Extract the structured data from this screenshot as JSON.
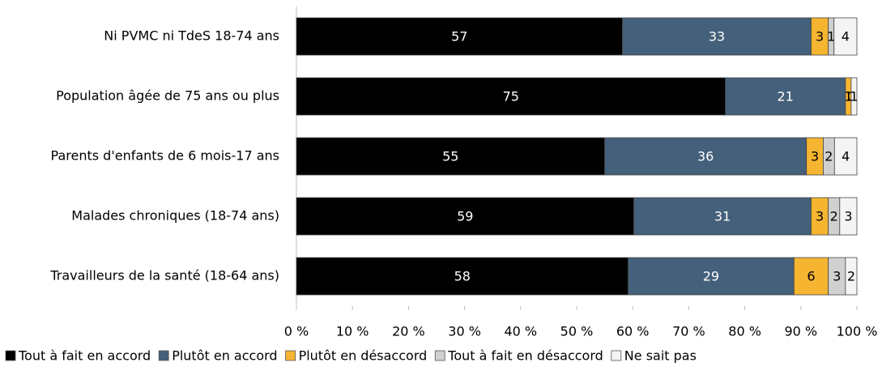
{
  "chart_data": {
    "type": "bar",
    "orientation": "horizontal",
    "stacked": "percent",
    "categories": [
      "Ni PVMC ni TdeS 18-74 ans",
      "Population âgée de 75 ans ou plus",
      "Parents d'enfants de 6 mois-17 ans ",
      "Malades chroniques (18-74 ans)",
      "Travailleurs de la santé (18-64 ans)"
    ],
    "series": [
      {
        "name": "Tout à fait en accord",
        "color": "#000000",
        "label_color": "#ffffff",
        "values": [
          57,
          75,
          55,
          59,
          58
        ]
      },
      {
        "name": "Plutôt en accord",
        "color": "#44607a",
        "label_color": "#ffffff",
        "values": [
          33,
          21,
          36,
          31,
          29
        ]
      },
      {
        "name": "Plutôt en désaccord",
        "color": "#f5b531",
        "label_color": "#000000",
        "values": [
          3,
          1,
          3,
          3,
          6
        ]
      },
      {
        "name": "Tout à fait en désaccord",
        "color": "#d0d0d0",
        "label_color": "#000000",
        "values": [
          1,
          0,
          2,
          2,
          3
        ]
      },
      {
        "name": "Ne sait pas",
        "color": "#f4f4f4",
        "label_color": "#000000",
        "values": [
          4,
          1,
          4,
          3,
          2
        ]
      }
    ],
    "xlim": [
      0,
      100
    ],
    "xticks": [
      {
        "value": 0,
        "label": "0 %"
      },
      {
        "value": 10,
        "label": "10 %"
      },
      {
        "value": 20,
        "label": "20 %"
      },
      {
        "value": 30,
        "label": "30 %"
      },
      {
        "value": 40,
        "label": "40 %"
      },
      {
        "value": 50,
        "label": "50 %"
      },
      {
        "value": 60,
        "label": "60 %"
      },
      {
        "value": 70,
        "label": "70 %"
      },
      {
        "value": 80,
        "label": "80 %"
      },
      {
        "value": 90,
        "label": "90 %"
      },
      {
        "value": 100,
        "label": "100 %"
      }
    ],
    "legend": "bottom"
  }
}
